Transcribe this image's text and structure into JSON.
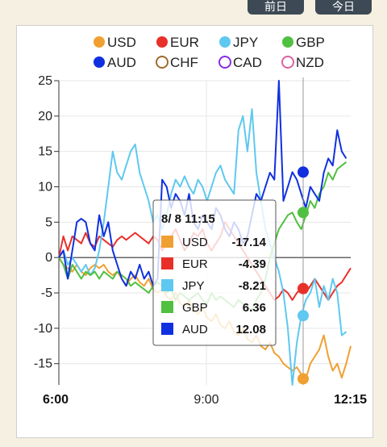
{
  "header": {
    "left_button": "前日",
    "right_button": "今日"
  },
  "tooltip": {
    "title": "8/ 8 11:15",
    "rows": [
      {
        "name": "USD",
        "value": "-17.14",
        "color": "#f0a030"
      },
      {
        "name": "EUR",
        "value": "-4.39",
        "color": "#e8302a"
      },
      {
        "name": "JPY",
        "value": "-8.21",
        "color": "#5ec8f0"
      },
      {
        "name": "GBP",
        "value": "6.36",
        "color": "#50c040"
      },
      {
        "name": "AUD",
        "value": "12.08",
        "color": "#1030e0"
      }
    ]
  },
  "chart_data": {
    "type": "line",
    "x_ticks": [
      "6:00",
      "9:00",
      "12:15"
    ],
    "ylim": [
      -18,
      25
    ],
    "y_ticks": [
      25,
      20,
      15,
      10,
      5,
      0,
      -5,
      -10,
      -15
    ],
    "grid": true,
    "legend": {
      "placement": "top",
      "entries": [
        {
          "name": "USD",
          "color": "#f0a030",
          "filled": true
        },
        {
          "name": "EUR",
          "color": "#e8302a",
          "filled": true
        },
        {
          "name": "JPY",
          "color": "#5ec8f0",
          "filled": true
        },
        {
          "name": "GBP",
          "color": "#50c040",
          "filled": true
        },
        {
          "name": "AUD",
          "color": "#1030e0",
          "filled": true
        },
        {
          "name": "CHF",
          "color": "#a06a2a",
          "filled": false
        },
        {
          "name": "CAD",
          "color": "#8a2be2",
          "filled": false
        },
        {
          "name": "NZD",
          "color": "#e060a0",
          "filled": false
        }
      ]
    },
    "series": [
      {
        "name": "USD",
        "color": "#f0a030",
        "values": [
          0,
          -1,
          -1.5,
          -2,
          -1,
          -2,
          -2.5,
          -1.5,
          -1,
          -1.5,
          -1,
          -2,
          -2.5,
          -2,
          -3,
          -4,
          -3,
          -2.5,
          -3.5,
          -4,
          -3,
          -4.5,
          -5,
          -4.5,
          -5.5,
          -6,
          -5,
          -6.5,
          -7,
          -6,
          -7.5,
          -8,
          -7,
          -8.5,
          -9,
          -8,
          -9.5,
          -10,
          -9,
          -10.5,
          -11,
          -10,
          -11.5,
          -12,
          -11,
          -12.5,
          -13,
          -12,
          -13.5,
          -14,
          -15,
          -15.5,
          -16,
          -15.5,
          -16.5,
          -17.14,
          -15,
          -14,
          -13,
          -11,
          -14,
          -16,
          -15,
          -17,
          -15,
          -12.5
        ]
      },
      {
        "name": "EUR",
        "color": "#e8302a",
        "values": [
          0,
          3,
          1,
          3,
          2.5,
          2,
          3.5,
          2,
          1.5,
          3,
          2.5,
          2,
          1.5,
          2.5,
          3,
          2.5,
          3,
          3.5,
          3,
          2.5,
          2,
          3,
          2.5,
          1,
          2,
          3,
          4,
          2.5,
          1,
          2,
          3.5,
          3,
          4,
          2,
          1,
          2,
          3,
          5,
          4,
          3,
          2,
          1,
          0,
          -1,
          -2,
          -3,
          -4,
          -5,
          -6,
          -5.5,
          -4.5,
          -5,
          -6,
          -5,
          -4.39,
          -5,
          -4,
          -3,
          -4,
          -5,
          -6,
          -5,
          -4,
          -3.5,
          -2.5,
          -1.5
        ]
      },
      {
        "name": "JPY",
        "color": "#5ec8f0",
        "values": [
          0,
          1,
          -1,
          0,
          -1,
          -2,
          -1,
          -2.5,
          -1.5,
          1,
          5,
          10,
          15,
          12,
          11,
          13,
          15,
          16,
          12,
          10,
          8,
          5,
          6,
          4,
          6,
          9,
          11,
          10,
          11.5,
          10,
          9,
          11,
          10,
          8,
          10,
          12,
          13,
          11,
          10,
          9,
          18,
          20,
          15,
          21,
          12,
          8,
          4,
          2,
          0,
          -2,
          -5,
          -10,
          -18,
          -12,
          -8.21,
          -6,
          -5,
          -3,
          -7,
          -4,
          -6,
          -3,
          -5,
          -11,
          -10.5
        ]
      },
      {
        "name": "GBP",
        "color": "#50c040",
        "values": [
          0,
          -1,
          -3,
          -1,
          -2,
          -3,
          -2,
          -2.5,
          -2,
          -3,
          -2,
          -2.5,
          -3,
          -2,
          -2.5,
          -3,
          -4,
          -3.5,
          -4,
          -4.5,
          -5,
          -4,
          -3.5,
          -4,
          -5,
          -4.5,
          -6,
          -5,
          -5.5,
          -6,
          -5.5,
          -5,
          -6,
          -6.5,
          -5,
          -6,
          -5.5,
          -6,
          -6.5,
          -7,
          -6,
          -6.5,
          -7,
          -7.5,
          -6,
          -5,
          -3,
          0,
          2,
          4,
          5,
          6,
          6.36,
          5,
          4,
          6,
          8,
          7,
          9,
          10,
          12,
          11,
          12.5,
          13,
          13.5
        ]
      },
      {
        "name": "AUD",
        "color": "#1030e0",
        "values": [
          0,
          1,
          -3,
          1,
          5,
          5.5,
          5,
          2,
          1,
          6,
          3,
          5,
          1,
          -1,
          -3,
          -4,
          -2,
          -3,
          -1,
          -3,
          -2,
          -4,
          -3,
          11,
          10,
          7,
          9,
          8,
          6,
          9,
          5,
          4,
          6,
          5,
          4,
          7,
          6,
          4,
          3,
          5,
          4,
          2,
          3,
          6,
          9,
          8,
          10,
          12,
          11,
          25,
          8,
          10,
          12.08,
          11,
          9,
          7,
          10,
          9,
          8,
          12,
          14,
          13,
          18,
          15,
          14
        ]
      }
    ]
  }
}
